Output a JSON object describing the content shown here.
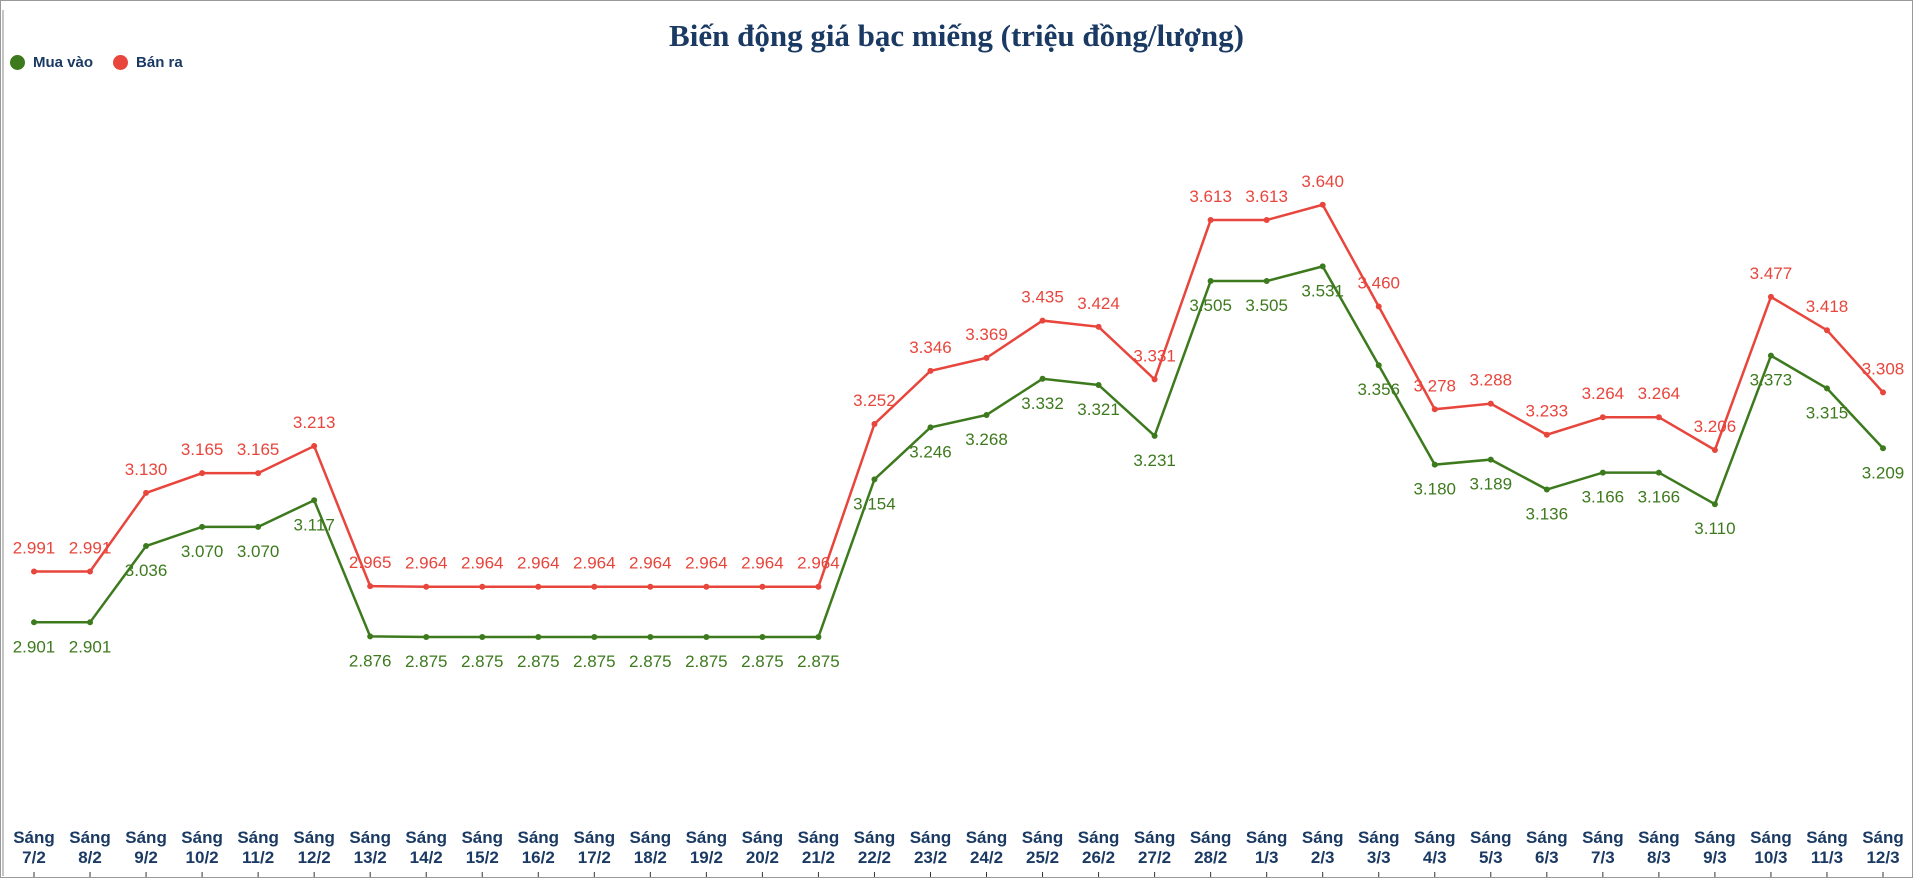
{
  "chart_data": {
    "type": "line",
    "title": "Biến động giá bạc miếng (triệu đồng/lượng)",
    "legend_position": "top-left",
    "grid": false,
    "categories": [
      [
        "Sáng",
        "7/2"
      ],
      [
        "Sáng",
        "8/2"
      ],
      [
        "Sáng",
        "9/2"
      ],
      [
        "Sáng",
        "10/2"
      ],
      [
        "Sáng",
        "11/2"
      ],
      [
        "Sáng",
        "12/2"
      ],
      [
        "Sáng",
        "13/2"
      ],
      [
        "Sáng",
        "14/2"
      ],
      [
        "Sáng",
        "15/2"
      ],
      [
        "Sáng",
        "16/2"
      ],
      [
        "Sáng",
        "17/2"
      ],
      [
        "Sáng",
        "18/2"
      ],
      [
        "Sáng",
        "19/2"
      ],
      [
        "Sáng",
        "20/2"
      ],
      [
        "Sáng",
        "21/2"
      ],
      [
        "Sáng",
        "22/2"
      ],
      [
        "Sáng",
        "23/2"
      ],
      [
        "Sáng",
        "24/2"
      ],
      [
        "Sáng",
        "25/2"
      ],
      [
        "Sáng",
        "26/2"
      ],
      [
        "Sáng",
        "27/2"
      ],
      [
        "Sáng",
        "28/2"
      ],
      [
        "Sáng",
        "1/3"
      ],
      [
        "Sáng",
        "2/3"
      ],
      [
        "Sáng",
        "3/3"
      ],
      [
        "Sáng",
        "4/3"
      ],
      [
        "Sáng",
        "5/3"
      ],
      [
        "Sáng",
        "6/3"
      ],
      [
        "Sáng",
        "7/3"
      ],
      [
        "Sáng",
        "8/3"
      ],
      [
        "Sáng",
        "9/3"
      ],
      [
        "Sáng",
        "10/3"
      ],
      [
        "Sáng",
        "11/3"
      ],
      [
        "Sáng",
        "12/3"
      ]
    ],
    "series": [
      {
        "name": "Mua vào",
        "color": "#3d7a1e",
        "values": [
          2.901,
          2.901,
          3.036,
          3.07,
          3.07,
          3.117,
          2.876,
          2.875,
          2.875,
          2.875,
          2.875,
          2.875,
          2.875,
          2.875,
          2.875,
          3.154,
          3.246,
          3.268,
          3.332,
          3.321,
          3.231,
          3.505,
          3.505,
          3.531,
          3.356,
          3.18,
          3.189,
          3.136,
          3.166,
          3.166,
          3.11,
          3.373,
          3.315,
          3.209
        ]
      },
      {
        "name": "Bán ra",
        "color": "#e8453c",
        "values": [
          2.991,
          2.991,
          3.13,
          3.165,
          3.165,
          3.213,
          2.965,
          2.964,
          2.964,
          2.964,
          2.964,
          2.964,
          2.964,
          2.964,
          2.964,
          3.252,
          3.346,
          3.369,
          3.435,
          3.424,
          3.331,
          3.613,
          3.613,
          3.64,
          3.46,
          3.278,
          3.288,
          3.233,
          3.264,
          3.264,
          3.206,
          3.477,
          3.418,
          3.308
        ]
      }
    ]
  }
}
